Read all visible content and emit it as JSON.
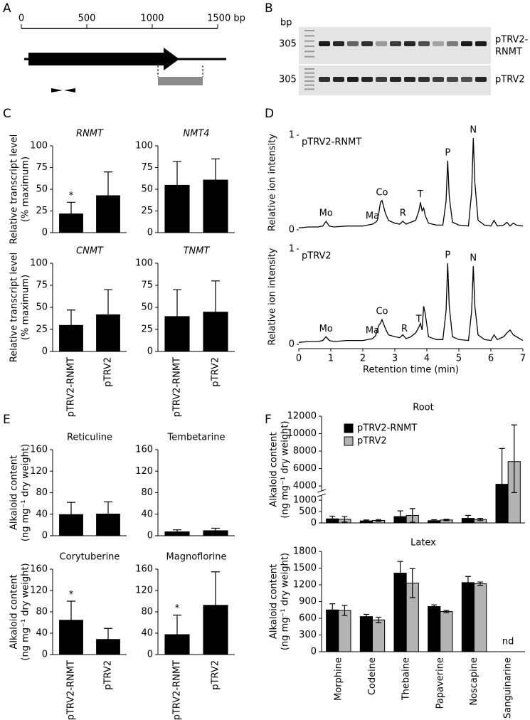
{
  "panel_labels": [
    "A",
    "B",
    "C",
    "D",
    "E",
    "F"
  ],
  "gene_map": {
    "scale_labels": [
      "0",
      "500",
      "1000",
      "1500 bp"
    ]
  },
  "gel": {
    "size_label": "bp",
    "rows": [
      {
        "size": "305",
        "label_lines": [
          "pTRV2-",
          "RNMT"
        ]
      },
      {
        "size": "305",
        "label_lines": [
          "pTRV2"
        ]
      }
    ]
  },
  "chart_data": [
    {
      "type": "bar",
      "title": "RNMT",
      "categories": [
        null,
        null
      ],
      "values": [
        22,
        43
      ],
      "errors": [
        13,
        27
      ],
      "significance": [
        "*",
        null
      ],
      "color": "#000000",
      "ylim": [
        0,
        100
      ],
      "yticks": [
        0,
        25,
        50,
        75,
        100
      ],
      "ylabel": [
        "Relative transcript level",
        "(% maximum)"
      ]
    },
    {
      "type": "bar",
      "title": "NMT4",
      "categories": [
        null,
        null
      ],
      "values": [
        55,
        61
      ],
      "errors": [
        27,
        24
      ],
      "color": "#000000",
      "ylim": [
        0,
        100
      ],
      "yticks": [
        0,
        25,
        50,
        75,
        100
      ]
    },
    {
      "type": "bar",
      "title": "CNMT",
      "categories": [
        "pTRV2-RNMT",
        "pTRV2"
      ],
      "values": [
        30,
        42
      ],
      "errors": [
        17,
        28
      ],
      "color": "#000000",
      "ylim": [
        0,
        100
      ],
      "yticks": [
        0,
        25,
        50,
        75,
        100
      ],
      "ylabel": [
        "Relative transcript level",
        "(% maximum)"
      ]
    },
    {
      "type": "bar",
      "title": "TNMT",
      "categories": [
        "pTRV2-RNMT",
        "pTRV2"
      ],
      "values": [
        40,
        45
      ],
      "errors": [
        30,
        35
      ],
      "color": "#000000",
      "ylim": [
        0,
        100
      ],
      "yticks": [
        0,
        25,
        50,
        75,
        100
      ]
    },
    {
      "type": "line",
      "label": "pTRV2-RNMT",
      "ylabel": "Relative ion intensity",
      "color": "#000000",
      "xlim": [
        0,
        7
      ],
      "ylim": [
        0,
        1
      ],
      "yticks": [
        0,
        1
      ],
      "x": [
        0,
        0.3,
        0.6,
        0.75,
        0.85,
        0.95,
        1.1,
        1.5,
        2.0,
        2.3,
        2.4,
        2.45,
        2.5,
        2.55,
        2.6,
        2.7,
        2.8,
        3.0,
        3.15,
        3.25,
        3.35,
        3.5,
        3.65,
        3.75,
        3.8,
        3.85,
        3.9,
        3.95,
        4.05,
        4.3,
        4.5,
        4.6,
        4.65,
        4.7,
        4.8,
        5.0,
        5.3,
        5.4,
        5.45,
        5.5,
        5.6,
        5.8,
        6.0,
        6.1,
        6.2,
        6.4,
        6.5,
        6.6,
        6.7,
        6.8,
        7.0
      ],
      "values": [
        0.02,
        0.03,
        0.03,
        0.04,
        0.09,
        0.04,
        0.03,
        0.04,
        0.04,
        0.06,
        0.08,
        0.1,
        0.18,
        0.29,
        0.31,
        0.18,
        0.1,
        0.07,
        0.06,
        0.09,
        0.06,
        0.08,
        0.1,
        0.2,
        0.29,
        0.2,
        0.23,
        0.15,
        0.07,
        0.05,
        0.05,
        0.3,
        0.73,
        0.35,
        0.08,
        0.05,
        0.04,
        0.4,
        0.97,
        0.5,
        0.1,
        0.05,
        0.04,
        0.1,
        0.04,
        0.05,
        0.08,
        0.04,
        0.07,
        0.05,
        0.04
      ],
      "peaks": [
        {
          "label": "Mo",
          "x": 0.85
        },
        {
          "label": "Ma",
          "x": 2.3
        },
        {
          "label": "Co",
          "x": 2.6
        },
        {
          "label": "R",
          "x": 3.25
        },
        {
          "label": "T",
          "x": 3.8
        },
        {
          "label": "P",
          "x": 4.65
        },
        {
          "label": "N",
          "x": 5.45
        }
      ]
    },
    {
      "type": "line",
      "label": "pTRV2",
      "ylabel": "Relative ion intensity",
      "xlabel": "Retention time (min)",
      "color": "#000000",
      "xlim": [
        0,
        7
      ],
      "ylim": [
        0,
        1
      ],
      "yticks": [
        0,
        1
      ],
      "xticks": [
        0,
        1,
        2,
        3,
        4,
        5,
        6,
        7
      ],
      "x": [
        0,
        0.3,
        0.6,
        0.75,
        0.85,
        0.95,
        1.1,
        1.5,
        2.0,
        2.3,
        2.4,
        2.45,
        2.5,
        2.55,
        2.6,
        2.7,
        2.8,
        3.0,
        3.15,
        3.25,
        3.35,
        3.5,
        3.65,
        3.75,
        3.8,
        3.85,
        3.9,
        3.95,
        4.05,
        4.3,
        4.5,
        4.6,
        4.65,
        4.7,
        4.8,
        5.0,
        5.3,
        5.4,
        5.45,
        5.5,
        5.6,
        5.8,
        6.0,
        6.1,
        6.2,
        6.4,
        6.5,
        6.6,
        6.7,
        6.8,
        7.0
      ],
      "values": [
        0.02,
        0.03,
        0.03,
        0.04,
        0.08,
        0.04,
        0.03,
        0.04,
        0.04,
        0.06,
        0.09,
        0.15,
        0.2,
        0.22,
        0.26,
        0.17,
        0.1,
        0.08,
        0.07,
        0.1,
        0.06,
        0.08,
        0.12,
        0.18,
        0.22,
        0.15,
        0.4,
        0.32,
        0.08,
        0.05,
        0.05,
        0.35,
        0.85,
        0.4,
        0.08,
        0.05,
        0.04,
        0.35,
        0.82,
        0.4,
        0.1,
        0.05,
        0.04,
        0.1,
        0.05,
        0.08,
        0.12,
        0.15,
        0.1,
        0.08,
        0.04
      ],
      "peaks": [
        {
          "label": "Mo",
          "x": 0.85
        },
        {
          "label": "Ma",
          "x": 2.3
        },
        {
          "label": "Co",
          "x": 2.6
        },
        {
          "label": "R",
          "x": 3.3
        },
        {
          "label": "T",
          "x": 3.75
        },
        {
          "label": "P",
          "x": 4.65
        },
        {
          "label": "N",
          "x": 5.45
        }
      ]
    },
    {
      "type": "bar",
      "title": "Reticuline",
      "categories": [
        null,
        null
      ],
      "values": [
        40,
        41
      ],
      "errors": [
        22,
        22
      ],
      "color": "#000000",
      "ylim": [
        0,
        160
      ],
      "yticks": [
        0,
        40,
        80,
        120,
        160
      ],
      "ylabel": [
        "Alkaloid content",
        "(ng mg⁻¹ dry weight)"
      ]
    },
    {
      "type": "bar",
      "title": "Tembetarine",
      "categories": [
        null,
        null
      ],
      "values": [
        8,
        10
      ],
      "errors": [
        3,
        4
      ],
      "color": "#000000",
      "ylim": [
        0,
        160
      ],
      "yticks": [
        0,
        40,
        80,
        120,
        160
      ]
    },
    {
      "type": "bar",
      "title": "Corytuberine",
      "categories": [
        "pTRV2-RNMT",
        "pTRV2"
      ],
      "values": [
        65,
        29
      ],
      "errors": [
        35,
        20
      ],
      "significance": [
        "*",
        null
      ],
      "color": "#000000",
      "ylim": [
        0,
        160
      ],
      "yticks": [
        0,
        40,
        80,
        120,
        160
      ],
      "ylabel": [
        "Alkaloid content",
        "(ng mg⁻¹ dry weight)"
      ]
    },
    {
      "type": "bar",
      "title": "Magnoflorine",
      "categories": [
        "pTRV2-RNMT",
        "pTRV2"
      ],
      "values": [
        38,
        93
      ],
      "errors": [
        36,
        62
      ],
      "significance": [
        "*",
        null
      ],
      "color": "#000000",
      "ylim": [
        0,
        160
      ],
      "yticks": [
        0,
        40,
        80,
        120,
        160
      ]
    },
    {
      "type": "bar",
      "title": "Root",
      "categories": [
        null,
        null,
        null,
        null,
        null,
        null
      ],
      "series": [
        {
          "name": "pTRV2-RNMT",
          "color": "#000000",
          "values": [
            180,
            90,
            280,
            100,
            200,
            4200
          ],
          "errors": [
            120,
            40,
            250,
            40,
            130,
            4100
          ]
        },
        {
          "name": "pTRV2",
          "color": "#b3b3b3",
          "values": [
            160,
            110,
            330,
            130,
            150,
            6800
          ],
          "errors": [
            120,
            40,
            300,
            30,
            50,
            4200
          ]
        }
      ],
      "ylim": [
        0,
        12000
      ],
      "yticks": [
        0,
        500,
        1000,
        4000,
        6000,
        8000,
        10000,
        12000
      ],
      "ybreak": [
        1000,
        4000
      ],
      "legend": "upper left",
      "ylabel": [
        "Alkaloid content",
        "(ng mg⁻¹ dry weight)"
      ]
    },
    {
      "type": "bar",
      "title": "Latex",
      "categories": [
        "Morphine",
        "Codeine",
        "Thebaine",
        "Papaverine",
        "Noscapine",
        "Sanguinarine"
      ],
      "series": [
        {
          "color": "#000000",
          "values": [
            750,
            630,
            1410,
            810,
            1240,
            null
          ],
          "errors": [
            110,
            40,
            210,
            30,
            110,
            null
          ]
        },
        {
          "color": "#b3b3b3",
          "values": [
            740,
            570,
            1230,
            720,
            1220,
            null
          ],
          "errors": [
            90,
            50,
            260,
            20,
            30,
            null
          ]
        }
      ],
      "ylim": [
        0,
        1800
      ],
      "yticks": [
        0,
        300,
        600,
        900,
        1200,
        1500,
        1800
      ],
      "missing_label": "nd",
      "ylabel": [
        "Alkaloid content",
        "(ng mg⁻¹ dry weight)"
      ]
    }
  ]
}
